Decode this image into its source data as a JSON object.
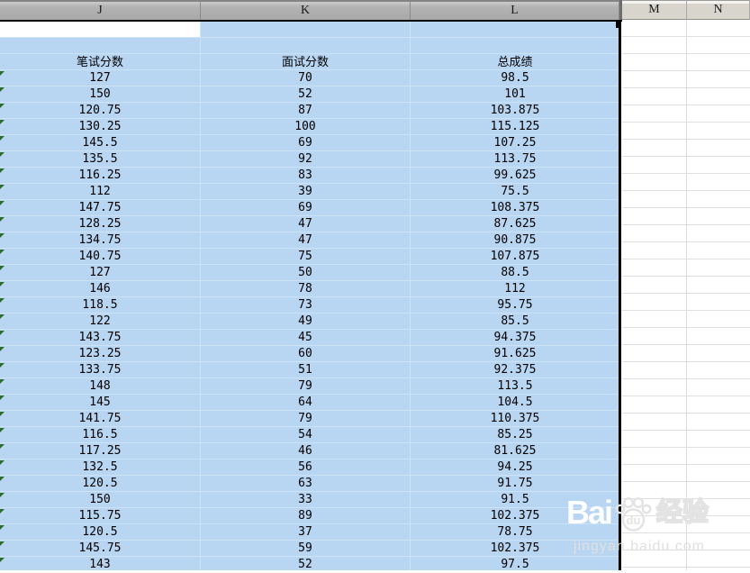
{
  "columns": [
    {
      "label": "J",
      "selected": true
    },
    {
      "label": "K",
      "selected": true
    },
    {
      "label": "L",
      "selected": true
    },
    {
      "label": "M",
      "selected": false
    },
    {
      "label": "N",
      "selected": false
    }
  ],
  "table": {
    "headers": [
      "笔试分数",
      "面试分数",
      "总成绩"
    ],
    "rows": [
      [
        "127",
        "70",
        "98.5"
      ],
      [
        "150",
        "52",
        "101"
      ],
      [
        "120.75",
        "87",
        "103.875"
      ],
      [
        "130.25",
        "100",
        "115.125"
      ],
      [
        "145.5",
        "69",
        "107.25"
      ],
      [
        "135.5",
        "92",
        "113.75"
      ],
      [
        "116.25",
        "83",
        "99.625"
      ],
      [
        "112",
        "39",
        "75.5"
      ],
      [
        "147.75",
        "69",
        "108.375"
      ],
      [
        "128.25",
        "47",
        "87.625"
      ],
      [
        "134.75",
        "47",
        "90.875"
      ],
      [
        "140.75",
        "75",
        "107.875"
      ],
      [
        "127",
        "50",
        "88.5"
      ],
      [
        "146",
        "78",
        "112"
      ],
      [
        "118.5",
        "73",
        "95.75"
      ],
      [
        "122",
        "49",
        "85.5"
      ],
      [
        "143.75",
        "45",
        "94.375"
      ],
      [
        "123.25",
        "60",
        "91.625"
      ],
      [
        "133.75",
        "51",
        "92.375"
      ],
      [
        "148",
        "79",
        "113.5"
      ],
      [
        "145",
        "64",
        "104.5"
      ],
      [
        "141.75",
        "79",
        "110.375"
      ],
      [
        "116.5",
        "54",
        "85.25"
      ],
      [
        "117.25",
        "46",
        "81.625"
      ],
      [
        "132.5",
        "56",
        "94.25"
      ],
      [
        "120.5",
        "63",
        "91.75"
      ],
      [
        "150",
        "33",
        "91.5"
      ],
      [
        "115.75",
        "89",
        "102.375"
      ],
      [
        "120.5",
        "37",
        "78.75"
      ],
      [
        "145.75",
        "59",
        "102.375"
      ],
      [
        "143",
        "52",
        "97.5"
      ]
    ]
  },
  "watermark": {
    "brand_bai": "Bai",
    "brand_du": "du",
    "brand_cn": "经验",
    "url": "jingyan.baidu.com"
  },
  "colors": {
    "selection_fill": "#b8d5f2",
    "selection_gridline": "#cde3f8",
    "selection_border": "#000000",
    "header_selected": "#adadad",
    "header_normal": "#d8d5cd",
    "flag_green": "#2a6e2a",
    "gridline_gray": "#dedede"
  }
}
